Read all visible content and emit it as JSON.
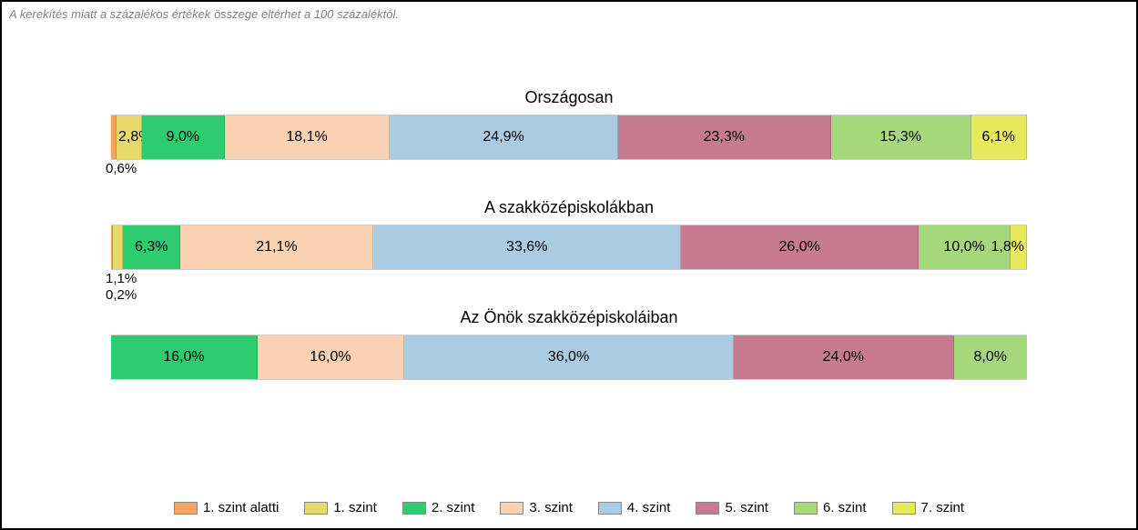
{
  "note": "A kerekítés miatt a százalékos értékek összege eltérhet a 100 százaléktól.",
  "colors": {
    "level_sub1": "#f4a460",
    "level1": "#e6d96a",
    "level2": "#2ecc71",
    "level3": "#f9d2b4",
    "level4": "#a9cce3",
    "level5": "#c77b92",
    "level6": "#a4d87a",
    "level7": "#e8e85a"
  },
  "chart": {
    "type": "stacked-bar-horizontal",
    "groups": [
      {
        "title": "Országosan",
        "segments": [
          {
            "key": "level_sub1",
            "value": 0.6,
            "label": "0,6%",
            "placement": "below",
            "below_order": 1
          },
          {
            "key": "level1",
            "value": 2.8,
            "label": "2,8%",
            "placement": "inside-right-overflow"
          },
          {
            "key": "level2",
            "value": 9.0,
            "label": "9,0%",
            "placement": "inside"
          },
          {
            "key": "level3",
            "value": 18.1,
            "label": "18,1%",
            "placement": "inside"
          },
          {
            "key": "level4",
            "value": 24.9,
            "label": "24,9%",
            "placement": "inside"
          },
          {
            "key": "level5",
            "value": 23.3,
            "label": "23,3%",
            "placement": "inside"
          },
          {
            "key": "level6",
            "value": 15.3,
            "label": "15,3%",
            "placement": "inside"
          },
          {
            "key": "level7",
            "value": 6.1,
            "label": "6,1%",
            "placement": "inside"
          }
        ]
      },
      {
        "title": "A szakközépiskolákban",
        "segments": [
          {
            "key": "level_sub1",
            "value": 0.2,
            "label": "0,2%",
            "placement": "below",
            "below_order": 1
          },
          {
            "key": "level1",
            "value": 1.1,
            "label": "1,1%",
            "placement": "below",
            "below_order": 0
          },
          {
            "key": "level2",
            "value": 6.3,
            "label": "6,3%",
            "placement": "inside"
          },
          {
            "key": "level3",
            "value": 21.1,
            "label": "21,1%",
            "placement": "inside"
          },
          {
            "key": "level4",
            "value": 33.6,
            "label": "33,6%",
            "placement": "inside"
          },
          {
            "key": "level5",
            "value": 26.0,
            "label": "26,0%",
            "placement": "inside"
          },
          {
            "key": "level6",
            "value": 10.0,
            "label": "10,0%",
            "placement": "inside"
          },
          {
            "key": "level7",
            "value": 1.8,
            "label": "1,8%",
            "placement": "inside-left-overflow"
          }
        ]
      },
      {
        "title": "Az Önök szakközépiskoláiban",
        "segments": [
          {
            "key": "level2",
            "value": 16.0,
            "label": "16,0%",
            "placement": "inside"
          },
          {
            "key": "level3",
            "value": 16.0,
            "label": "16,0%",
            "placement": "inside"
          },
          {
            "key": "level4",
            "value": 36.0,
            "label": "36,0%",
            "placement": "inside"
          },
          {
            "key": "level5",
            "value": 24.0,
            "label": "24,0%",
            "placement": "inside"
          },
          {
            "key": "level6",
            "value": 8.0,
            "label": "8,0%",
            "placement": "inside"
          }
        ]
      }
    ]
  },
  "legend": [
    {
      "key": "level_sub1",
      "label": "1. szint alatti"
    },
    {
      "key": "level1",
      "label": "1. szint"
    },
    {
      "key": "level2",
      "label": "2. szint"
    },
    {
      "key": "level3",
      "label": "3. szint"
    },
    {
      "key": "level4",
      "label": "4. szint"
    },
    {
      "key": "level5",
      "label": "5. szint"
    },
    {
      "key": "level6",
      "label": "6. szint"
    },
    {
      "key": "level7",
      "label": "7. szint"
    }
  ]
}
